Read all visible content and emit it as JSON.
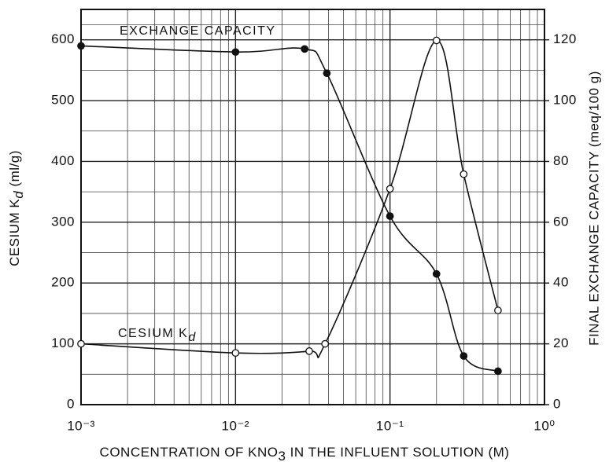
{
  "chart_data": {
    "type": "line",
    "annotations": [
      {
        "text": "EXCHANGE CAPACITY"
      },
      {
        "text": "CESIUM K",
        "subscript": "d"
      }
    ],
    "x_label": {
      "text": "CONCENTRATION OF KNO",
      "subscript": "3",
      "suffix": " IN THE INFLUENT SOLUTION (M)"
    },
    "y_label": {
      "text": "CESIUM K",
      "subscript": "d",
      "suffix": "  (ml/g)"
    },
    "y2_label": "FINAL EXCHANGE CAPACITY  (meq/100 g)",
    "x_log": true,
    "xlim": [
      0.001,
      1
    ],
    "xticks": [
      {
        "value": 0.001,
        "label": "10⁻³"
      },
      {
        "value": 0.01,
        "label": "10⁻²"
      },
      {
        "value": 0.1,
        "label": "10⁻¹"
      },
      {
        "value": 1,
        "label": "10⁰"
      }
    ],
    "ylim": [
      0,
      650
    ],
    "yticks": [
      0,
      100,
      200,
      300,
      400,
      500,
      600
    ],
    "y2lim": [
      0,
      130
    ],
    "y2ticks": [
      0,
      20,
      40,
      60,
      80,
      100,
      120
    ],
    "grid": true,
    "series": [
      {
        "name": "EXCHANGE CAPACITY",
        "axis": "y2",
        "color": "#111111",
        "marker": "filled",
        "x": [
          0.001,
          0.01,
          0.028,
          0.039,
          0.1,
          0.2,
          0.3,
          0.5
        ],
        "values": [
          118,
          116,
          117,
          109,
          62,
          43,
          16,
          11
        ]
      },
      {
        "name": "CESIUM Kd",
        "axis": "y",
        "color": "#111111",
        "marker": "open",
        "x": [
          0.001,
          0.01,
          0.03,
          0.038,
          0.1,
          0.2,
          0.3,
          0.5
        ],
        "values": [
          100,
          85,
          88,
          100,
          355,
          599,
          379,
          155
        ]
      }
    ]
  }
}
